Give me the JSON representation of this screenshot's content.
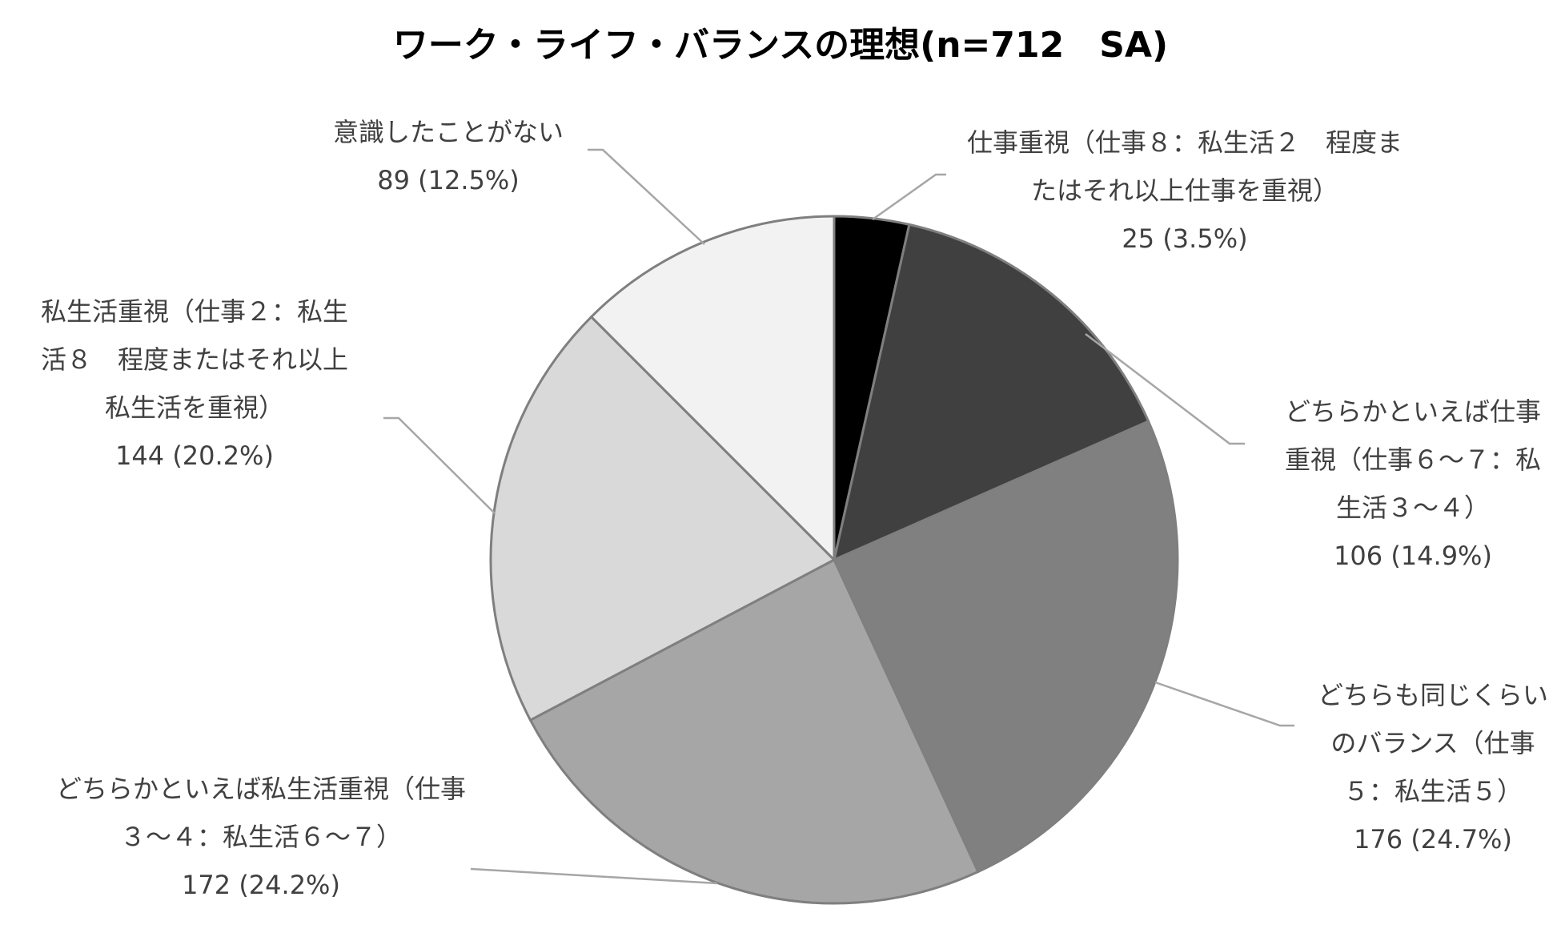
{
  "chart_data": {
    "type": "pie",
    "title": "ワーク・ライフ・バランスの理想(n=712　SA)",
    "categories": [
      "仕事重視（仕事８：私生活２　程度またはそれ以上仕事を重視）",
      "どちらかといえば仕事重視（仕事６～７：私生活３～４）",
      "どちらも同じくらいのバランス（仕事５：私生活５）",
      "どちらかといえば私生活重視（仕事３～４：私生活６～７）",
      "私生活重視（仕事２：私生活８　程度またはそれ以上私生活を重視）",
      "意識したことがない"
    ],
    "values": [
      25,
      106,
      176,
      172,
      144,
      89
    ],
    "value_labels": [
      "25 (3.5%)",
      "106 (14.9%)",
      "176 (24.7%)",
      "172 (24.2%)",
      "144 (20.2%)",
      "89 (12.5%)"
    ],
    "colors": [
      "#000000",
      "#404040",
      "#808080",
      "#a6a6a6",
      "#d9d9d9",
      "#f2f2f2"
    ]
  }
}
